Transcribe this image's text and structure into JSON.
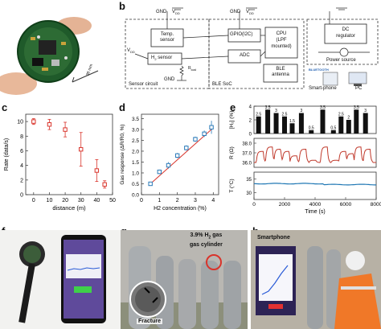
{
  "panels": {
    "a": "a",
    "b": "b",
    "c": "c",
    "d": "d",
    "e": "e",
    "f": "f",
    "g": "g",
    "h": "h"
  },
  "a": {
    "dimension": "38 mm"
  },
  "b": {
    "gnd_left": "GND",
    "vdd_left_top": "V",
    "vdd_left_top_sub": "DD",
    "gnd_mid": "GND",
    "vdd_mid": "V",
    "vdd_mid_sub": "DD",
    "vdd_side": "V",
    "vdd_side_sub": "DD",
    "temp_sensor": "Temp. sensor",
    "h2_sensor": "H",
    "h2_sensor_sub": "2",
    "h2_sensor_rest": " sensor",
    "r_load": "R",
    "r_load_sub": "load",
    "gnd_bottom": "GND",
    "sensor_circuit": "Sensor circuit",
    "gpio": "GPIO(I2C)",
    "adc": "ADC",
    "cpu": "CPU",
    "cpu_line2": "(LPF",
    "cpu_line3": "mounted)",
    "ble_antenna_line1": "BLE",
    "ble_antenna_line2": "antenna",
    "ble_soc": "BLE SoC",
    "dc_regulator_line1": "DC",
    "dc_regulator_line2": "regulator",
    "power_source": "Power source",
    "bluetooth": "BLUETOOTH",
    "smartphone": "Smart-phone",
    "pc": "PC"
  },
  "c": {
    "ylabel": "Rate (data/s)",
    "xlabel": "distance (m)",
    "yticks": [
      "0",
      "2",
      "4",
      "6",
      "8",
      "10"
    ],
    "xticks": [
      "0",
      "10",
      "20",
      "30",
      "40",
      "50"
    ]
  },
  "d": {
    "ylabel_part1": "Gas response (ΔR/R",
    "ylabel_sub": "0",
    "ylabel_part2": ", %)",
    "xlabel_part1": "H",
    "xlabel_sub": "2",
    "xlabel_part2": " concentration (%)",
    "yticks": [
      "0.0",
      "0.5",
      "1.0",
      "1.5",
      "2.0",
      "2.5",
      "3.0",
      "3.5"
    ],
    "xticks": [
      "0",
      "1",
      "2",
      "3",
      "4"
    ]
  },
  "e": {
    "ylabel_top": "[H₂] (%)",
    "ylabel_mid": "R (Ω)",
    "ylabel_bottom": "T (°C)",
    "xlabel": "Time (s)",
    "xticks": [
      "0",
      "2000",
      "4000",
      "6000",
      "8000"
    ],
    "top_yticks": [
      "0",
      "2",
      "4"
    ],
    "mid_yticks": [
      "36.0",
      "37.0",
      "38.0"
    ],
    "bottom_yticks": [
      "30",
      "35"
    ],
    "bar_labels": [
      "2.5",
      "3.5",
      "3",
      "2.5",
      "1.5",
      "3",
      "0.5",
      "3.5",
      "0.5",
      "2.5",
      "2",
      "3.5",
      "3"
    ]
  },
  "g": {
    "annotation_line1": "3.9% H",
    "annotation_sub": "2",
    "annotation_line1_rest": " gas",
    "annotation_line2": "gas cylinder",
    "fracture": "Fracture"
  },
  "h": {
    "smartphone": "Smartphone"
  },
  "colors": {
    "red": "#d9342b",
    "blue": "#2a7ab8",
    "line_red": "#c0392b",
    "cyan": "#1f77b4"
  },
  "chart_data": [
    {
      "type": "scatter",
      "title": "",
      "xlabel": "distance (m)",
      "ylabel": "Rate (data/s)",
      "xlim": [
        -5,
        50
      ],
      "ylim": [
        0,
        11
      ],
      "x": [
        0,
        10,
        20,
        30,
        40,
        45
      ],
      "y": [
        10,
        9.6,
        8.9,
        6.2,
        3.3,
        1.4
      ],
      "yerr": [
        0.4,
        0.7,
        1.0,
        2.3,
        1.5,
        0.5
      ]
    },
    {
      "type": "scatter",
      "title": "",
      "xlabel": "H2 concentration (%)",
      "ylabel": "Gas response (ΔR/R0, %)",
      "xlim": [
        0,
        4.3
      ],
      "ylim": [
        0,
        3.7
      ],
      "x": [
        0.5,
        1,
        1.5,
        2,
        2.5,
        3,
        3.5,
        3.9
      ],
      "y": [
        0.5,
        1.05,
        1.35,
        1.8,
        2.15,
        2.55,
        2.8,
        3.1
      ],
      "yerr": [
        0.05,
        0.1,
        0.15,
        0.12,
        0.12,
        0.12,
        0.15,
        0.3
      ],
      "fit_line": {
        "x": [
          0.5,
          3.9
        ],
        "y": [
          0.5,
          3.0
        ]
      }
    },
    {
      "type": "bar",
      "title": "",
      "xlabel": "Time (s)",
      "ylabel": "[H2] (%)",
      "xlim": [
        0,
        8000
      ],
      "ylim": [
        0,
        4
      ],
      "x": [
        300,
        900,
        1450,
        2000,
        2500,
        3100,
        3750,
        4500,
        5200,
        5700,
        6200,
        6700,
        7300
      ],
      "values": [
        2.5,
        3.5,
        3,
        2.5,
        1.5,
        3,
        0.5,
        3.5,
        0.5,
        2.5,
        2,
        3.5,
        3
      ]
    }
  ]
}
